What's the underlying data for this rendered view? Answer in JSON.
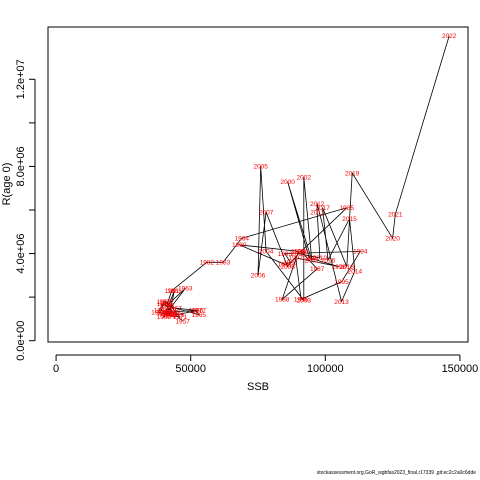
{
  "chart_data": {
    "type": "line",
    "xlabel": "SSB",
    "ylabel": "R(age 0)",
    "xlim": [
      -3000,
      153000
    ],
    "ylim": [
      -60000,
      14400000
    ],
    "x_ticks": [
      0,
      50000,
      100000,
      150000
    ],
    "x_tick_labels": [
      "0",
      "50000",
      "100000",
      "150000"
    ],
    "y_ticks": [
      0,
      4000000,
      8000000,
      12000000
    ],
    "y_tick_labels": [
      "0.0e+00",
      "4.0e+06",
      "8.0e+06",
      "1.2e+07"
    ],
    "label_color": "#ff0000",
    "line_color": "#000000",
    "points": [
      {
        "label": "1957",
        "x": 47000,
        "y": 900000
      },
      {
        "label": "1958",
        "x": 40000,
        "y": 1700000
      },
      {
        "label": "1959",
        "x": 39000,
        "y": 1400000
      },
      {
        "label": "1960",
        "x": 42000,
        "y": 1200000
      },
      {
        "label": "1961",
        "x": 44000,
        "y": 2300000
      },
      {
        "label": "1962",
        "x": 40000,
        "y": 1100000
      },
      {
        "label": "1963",
        "x": 48000,
        "y": 2400000
      },
      {
        "label": "1964",
        "x": 41000,
        "y": 1600000
      },
      {
        "label": "1965",
        "x": 53000,
        "y": 1200000
      },
      {
        "label": "1966",
        "x": 52000,
        "y": 1400000
      },
      {
        "label": "1967",
        "x": 44000,
        "y": 1500000
      },
      {
        "label": "1968",
        "x": 40000,
        "y": 1800000
      },
      {
        "label": "1969",
        "x": 38000,
        "y": 1300000
      },
      {
        "label": "1970",
        "x": 42000,
        "y": 1150000
      },
      {
        "label": "1971",
        "x": 46000,
        "y": 1100000
      },
      {
        "label": "1972",
        "x": 41000,
        "y": 1800000
      },
      {
        "label": "1973",
        "x": 42000,
        "y": 1250000
      },
      {
        "label": "1974",
        "x": 41000,
        "y": 1250000
      },
      {
        "label": "1975",
        "x": 43000,
        "y": 1300000
      },
      {
        "label": "1976",
        "x": 45000,
        "y": 1200000
      },
      {
        "label": "1977",
        "x": 53000,
        "y": 1400000
      },
      {
        "label": "1978",
        "x": 40000,
        "y": 1300000
      },
      {
        "label": "1979",
        "x": 42000,
        "y": 1400000
      },
      {
        "label": "1980",
        "x": 41000,
        "y": 1600000
      },
      {
        "label": "1981",
        "x": 43000,
        "y": 2300000
      },
      {
        "label": "1982",
        "x": 56000,
        "y": 3600000
      },
      {
        "label": "1983",
        "x": 62000,
        "y": 3600000
      },
      {
        "label": "1984",
        "x": 69000,
        "y": 4700000
      },
      {
        "label": "1985",
        "x": 108000,
        "y": 6100000
      },
      {
        "label": "1986",
        "x": 91000,
        "y": 4100000
      },
      {
        "label": "1987",
        "x": 97000,
        "y": 3300000
      },
      {
        "label": "1988",
        "x": 84000,
        "y": 1900000
      },
      {
        "label": "1989",
        "x": 90000,
        "y": 4100000
      },
      {
        "label": "1990",
        "x": 68000,
        "y": 4400000
      },
      {
        "label": "1991",
        "x": 85000,
        "y": 3500000
      },
      {
        "label": "1992",
        "x": 87000,
        "y": 3600000
      },
      {
        "label": "1993",
        "x": 85000,
        "y": 4000000
      },
      {
        "label": "1994",
        "x": 113000,
        "y": 4100000
      },
      {
        "label": "1995",
        "x": 106000,
        "y": 2700000
      },
      {
        "label": "1996",
        "x": 91000,
        "y": 1900000
      },
      {
        "label": "1997",
        "x": 89000,
        "y": 3800000
      },
      {
        "label": "1998",
        "x": 105000,
        "y": 3400000
      },
      {
        "label": "1999",
        "x": 94000,
        "y": 3800000
      },
      {
        "label": "2000",
        "x": 86000,
        "y": 7300000
      },
      {
        "label": "2001",
        "x": 95000,
        "y": 3700000
      },
      {
        "label": "2002",
        "x": 92000,
        "y": 7500000
      },
      {
        "label": "2003",
        "x": 92000,
        "y": 1850000
      },
      {
        "label": "2004",
        "x": 78000,
        "y": 4100000
      },
      {
        "label": "2005",
        "x": 76000,
        "y": 8000000
      },
      {
        "label": "2006",
        "x": 75000,
        "y": 3000000
      },
      {
        "label": "2007",
        "x": 78000,
        "y": 5900000
      },
      {
        "label": "2008",
        "x": 86000,
        "y": 3400000
      },
      {
        "label": "2009",
        "x": 90000,
        "y": 4000000
      },
      {
        "label": "2010",
        "x": 98000,
        "y": 3800000
      },
      {
        "label": "2011",
        "x": 97000,
        "y": 5900000
      },
      {
        "label": "2012",
        "x": 97000,
        "y": 6300000
      },
      {
        "label": "2013",
        "x": 106000,
        "y": 1800000
      },
      {
        "label": "2014",
        "x": 111000,
        "y": 3200000
      },
      {
        "label": "2015",
        "x": 109000,
        "y": 5600000
      },
      {
        "label": "2016",
        "x": 101000,
        "y": 3700000
      },
      {
        "label": "2017",
        "x": 99000,
        "y": 6100000
      },
      {
        "label": "2018",
        "x": 108000,
        "y": 3400000
      },
      {
        "label": "2019",
        "x": 110000,
        "y": 7700000
      },
      {
        "label": "2020",
        "x": 125000,
        "y": 4700000
      },
      {
        "label": "2021",
        "x": 126000,
        "y": 5800000
      },
      {
        "label": "2022",
        "x": 146000,
        "y": 14000000
      }
    ]
  },
  "footer_text": "stockassessment.org,GoR_wgbfas2023_final,r17339 ,git:ec2c2a0c6dde"
}
